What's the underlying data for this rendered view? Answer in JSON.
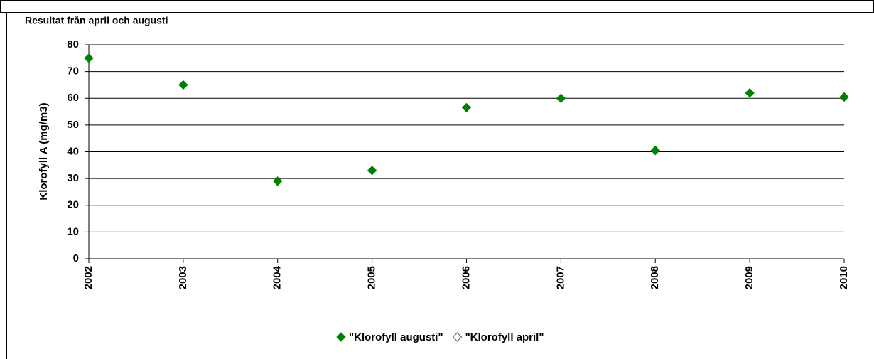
{
  "chart_data": {
    "type": "scatter",
    "title": "Resultat från april och augusti",
    "y_label": "Klorofyll A (mg/m3)",
    "x": [
      2002,
      2003,
      2004,
      2005,
      2006,
      2007,
      2008,
      2009,
      2010
    ],
    "series": [
      {
        "name": "\"Klorofyll augusti\"",
        "color": "#008000",
        "values": [
          75,
          65,
          29,
          33,
          56.5,
          60,
          40.5,
          62,
          60.5
        ]
      },
      {
        "name": "\"Klorofyll april\"",
        "color": "#ffffff",
        "values": [
          null,
          null,
          null,
          null,
          null,
          null,
          null,
          null,
          null
        ]
      }
    ],
    "xlim": [
      2002,
      2010
    ],
    "xticks": [
      2002,
      2003,
      2004,
      2005,
      2006,
      2007,
      2008,
      2009,
      2010
    ],
    "ylim": [
      0,
      80
    ],
    "yticks": [
      0,
      10,
      20,
      30,
      40,
      50,
      60,
      70,
      80
    ],
    "grid": true,
    "legend": "bottom"
  }
}
